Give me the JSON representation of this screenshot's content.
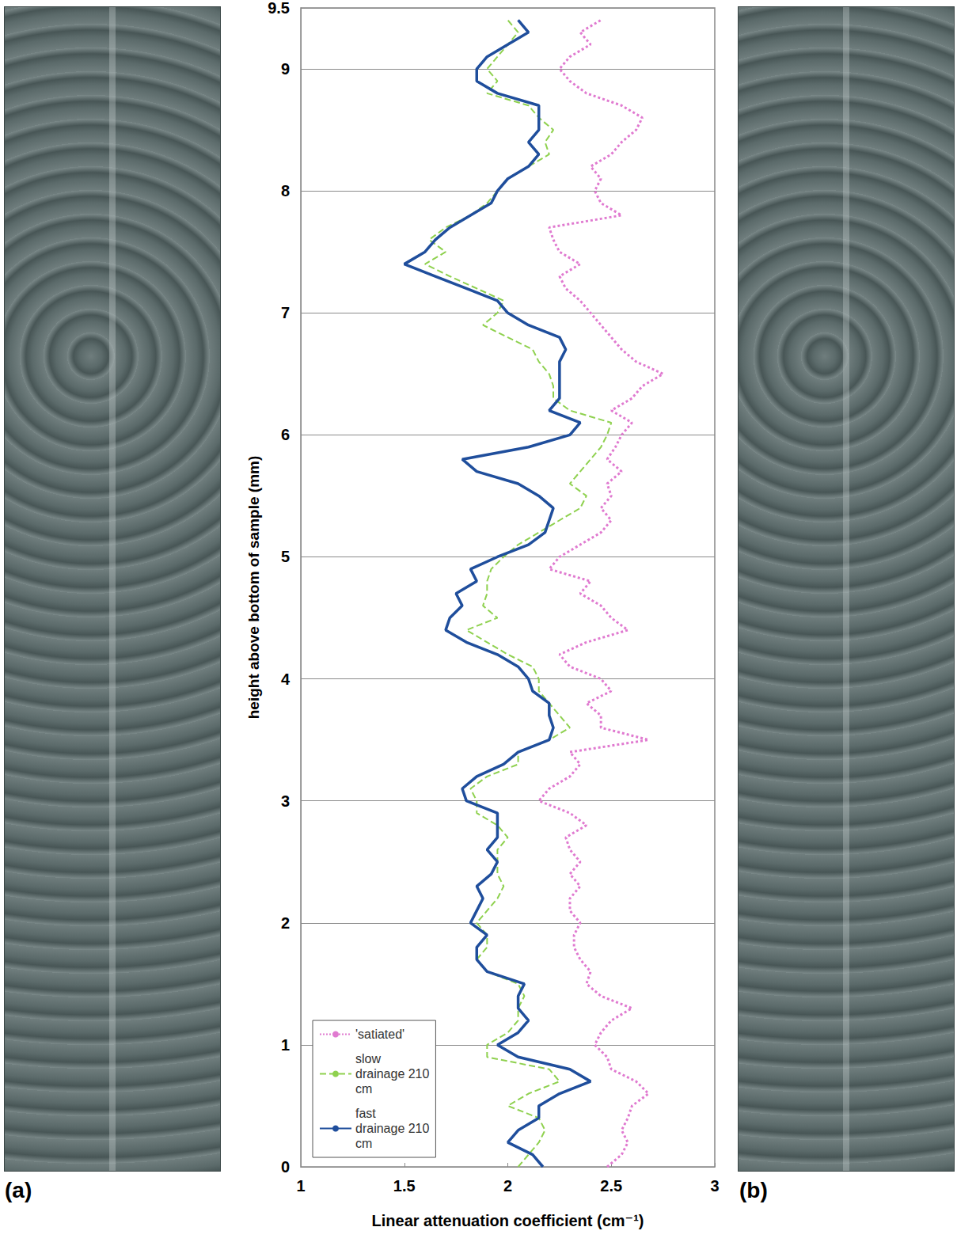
{
  "chart_data": {
    "type": "line",
    "panel_labels": [
      "(a)",
      "(b)"
    ],
    "xlabel": "Linear attenuation coefficient (cm⁻¹)",
    "ylabel": "height above bottom of sample (mm)",
    "xlim": [
      1,
      3
    ],
    "xticks": [
      1,
      1.5,
      2,
      2.5,
      3
    ],
    "ylim": [
      0,
      9.5
    ],
    "yticks": [
      0,
      1,
      2,
      3,
      4,
      5,
      6,
      7,
      8,
      9
    ],
    "grid": true,
    "legend": "lower left",
    "y": [
      0,
      0.1,
      0.2,
      0.3,
      0.4,
      0.5,
      0.6,
      0.7,
      0.8,
      0.9,
      1,
      1.1,
      1.2,
      1.3,
      1.4,
      1.5,
      1.6,
      1.7,
      1.8,
      1.9,
      2,
      2.1,
      2.2,
      2.3,
      2.4,
      2.5,
      2.6,
      2.7,
      2.8,
      2.9,
      3,
      3.1,
      3.2,
      3.3,
      3.4,
      3.5,
      3.6,
      3.7,
      3.8,
      3.9,
      4,
      4.1,
      4.2,
      4.3,
      4.4,
      4.5,
      4.6,
      4.7,
      4.8,
      4.9,
      5,
      5.1,
      5.2,
      5.3,
      5.4,
      5.5,
      5.6,
      5.7,
      5.8,
      5.9,
      6,
      6.1,
      6.2,
      6.3,
      6.4,
      6.5,
      6.6,
      6.7,
      6.8,
      6.9,
      7,
      7.1,
      7.2,
      7.3,
      7.4,
      7.5,
      7.6,
      7.7,
      7.8,
      7.9,
      8,
      8.1,
      8.2,
      8.3,
      8.4,
      8.5,
      8.6,
      8.7,
      8.8,
      8.9,
      9,
      9.1,
      9.2,
      9.3,
      9.4
    ],
    "series": [
      {
        "name": "'satiated'",
        "color": "#e07ad0",
        "line_style": "dotted",
        "values": [
          2.48,
          2.55,
          2.58,
          2.55,
          2.58,
          2.6,
          2.68,
          2.62,
          2.5,
          2.48,
          2.42,
          2.45,
          2.5,
          2.6,
          2.45,
          2.38,
          2.4,
          2.35,
          2.32,
          2.32,
          2.35,
          2.3,
          2.3,
          2.35,
          2.3,
          2.35,
          2.3,
          2.28,
          2.38,
          2.3,
          2.15,
          2.2,
          2.3,
          2.35,
          2.3,
          2.68,
          2.45,
          2.45,
          2.38,
          2.5,
          2.45,
          2.3,
          2.25,
          2.38,
          2.58,
          2.5,
          2.45,
          2.35,
          2.4,
          2.2,
          2.25,
          2.35,
          2.45,
          2.5,
          2.45,
          2.5,
          2.48,
          2.55,
          2.48,
          2.52,
          2.55,
          2.6,
          2.5,
          2.6,
          2.65,
          2.75,
          2.62,
          2.55,
          2.5,
          2.45,
          2.4,
          2.35,
          2.28,
          2.25,
          2.35,
          2.25,
          2.22,
          2.2,
          2.55,
          2.45,
          2.42,
          2.45,
          2.4,
          2.5,
          2.55,
          2.62,
          2.65,
          2.55,
          2.38,
          2.3,
          2.25,
          2.3,
          2.4,
          2.35,
          2.45
        ]
      },
      {
        "name": "slow drainage 210 cm",
        "color": "#8fd14f",
        "line_style": "dashed",
        "values": [
          2.05,
          2.1,
          2.15,
          2.18,
          2.15,
          2.0,
          2.1,
          2.25,
          2.2,
          1.9,
          1.9,
          2.0,
          2.05,
          2.05,
          2.08,
          2.05,
          1.9,
          1.85,
          1.9,
          1.9,
          1.85,
          1.9,
          1.95,
          1.98,
          1.95,
          1.95,
          1.95,
          2.0,
          1.95,
          1.85,
          1.85,
          1.82,
          1.9,
          2.05,
          2.05,
          2.2,
          2.3,
          2.25,
          2.2,
          2.15,
          2.15,
          2.12,
          2.0,
          1.9,
          1.8,
          1.95,
          1.88,
          1.9,
          1.9,
          1.92,
          1.98,
          2.05,
          2.15,
          2.25,
          2.35,
          2.38,
          2.3,
          2.35,
          2.4,
          2.45,
          2.48,
          2.5,
          2.3,
          2.22,
          2.22,
          2.2,
          2.15,
          2.12,
          2.0,
          1.88,
          1.95,
          1.98,
          1.85,
          1.72,
          1.6,
          1.7,
          1.62,
          1.7,
          1.82,
          1.9,
          1.95,
          2.0,
          2.1,
          2.2,
          2.18,
          2.22,
          2.15,
          2.1,
          1.9,
          1.95,
          1.9,
          1.95,
          2.0,
          2.05,
          2.0
        ]
      },
      {
        "name": "fast drainage 210 cm",
        "color": "#1f4e9c",
        "line_style": "solid",
        "values": [
          2.17,
          2.12,
          2.0,
          2.05,
          2.15,
          2.15,
          2.25,
          2.4,
          2.3,
          2.05,
          1.95,
          2.05,
          2.1,
          2.05,
          2.05,
          2.08,
          1.9,
          1.85,
          1.85,
          1.9,
          1.82,
          1.85,
          1.88,
          1.85,
          1.92,
          1.95,
          1.9,
          1.95,
          1.95,
          1.95,
          1.8,
          1.78,
          1.85,
          1.98,
          2.05,
          2.2,
          2.22,
          2.2,
          2.2,
          2.12,
          2.1,
          2.05,
          1.95,
          1.8,
          1.7,
          1.72,
          1.78,
          1.75,
          1.85,
          1.82,
          1.95,
          2.1,
          2.18,
          2.2,
          2.22,
          2.15,
          2.05,
          1.85,
          1.78,
          2.1,
          2.3,
          2.35,
          2.2,
          2.25,
          2.25,
          2.25,
          2.25,
          2.28,
          2.25,
          2.1,
          2.0,
          1.95,
          1.8,
          1.65,
          1.5,
          1.6,
          1.65,
          1.72,
          1.82,
          1.92,
          1.95,
          2.0,
          2.1,
          2.15,
          2.1,
          2.15,
          2.15,
          2.15,
          1.95,
          1.85,
          1.85,
          1.9,
          2.0,
          2.1,
          2.05
        ]
      }
    ]
  }
}
